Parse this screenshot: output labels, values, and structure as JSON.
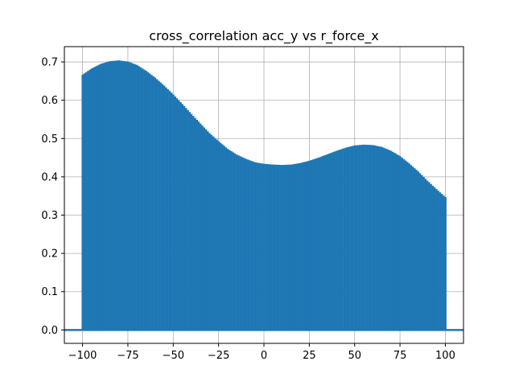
{
  "chart_data": {
    "type": "bar",
    "title": "cross_correlation acc_y vs r_force_x",
    "xlabel": "",
    "ylabel": "",
    "xlim": [
      -110,
      110
    ],
    "ylim": [
      -0.035,
      0.74
    ],
    "xticks": [
      -100,
      -75,
      -50,
      -25,
      0,
      25,
      50,
      75,
      100
    ],
    "xtick_labels": [
      "−100",
      "−75",
      "−50",
      "−25",
      "0",
      "25",
      "50",
      "75",
      "100"
    ],
    "yticks": [
      0.0,
      0.1,
      0.2,
      0.3,
      0.4,
      0.5,
      0.6,
      0.7
    ],
    "ytick_labels": [
      "0.0",
      "0.1",
      "0.2",
      "0.3",
      "0.4",
      "0.5",
      "0.6",
      "0.7"
    ],
    "grid": true,
    "baseline": 0.0,
    "bar_color": "#1f77b4",
    "series": [
      {
        "lags": [
          -100,
          -95,
          -90,
          -85,
          -80,
          -75,
          -70,
          -65,
          -60,
          -55,
          -50,
          -45,
          -40,
          -35,
          -30,
          -25,
          -20,
          -15,
          -10,
          -5,
          0,
          5,
          10,
          15,
          20,
          25,
          30,
          35,
          40,
          45,
          50,
          55,
          60,
          65,
          70,
          75,
          80,
          85,
          90,
          95,
          100
        ],
        "values": [
          0.667,
          0.683,
          0.695,
          0.702,
          0.704,
          0.701,
          0.692,
          0.677,
          0.659,
          0.638,
          0.615,
          0.59,
          0.564,
          0.539,
          0.514,
          0.493,
          0.473,
          0.458,
          0.447,
          0.438,
          0.434,
          0.432,
          0.431,
          0.432,
          0.436,
          0.442,
          0.45,
          0.459,
          0.468,
          0.476,
          0.482,
          0.484,
          0.483,
          0.478,
          0.468,
          0.454,
          0.435,
          0.414,
          0.39,
          0.368,
          0.347
        ]
      }
    ]
  }
}
